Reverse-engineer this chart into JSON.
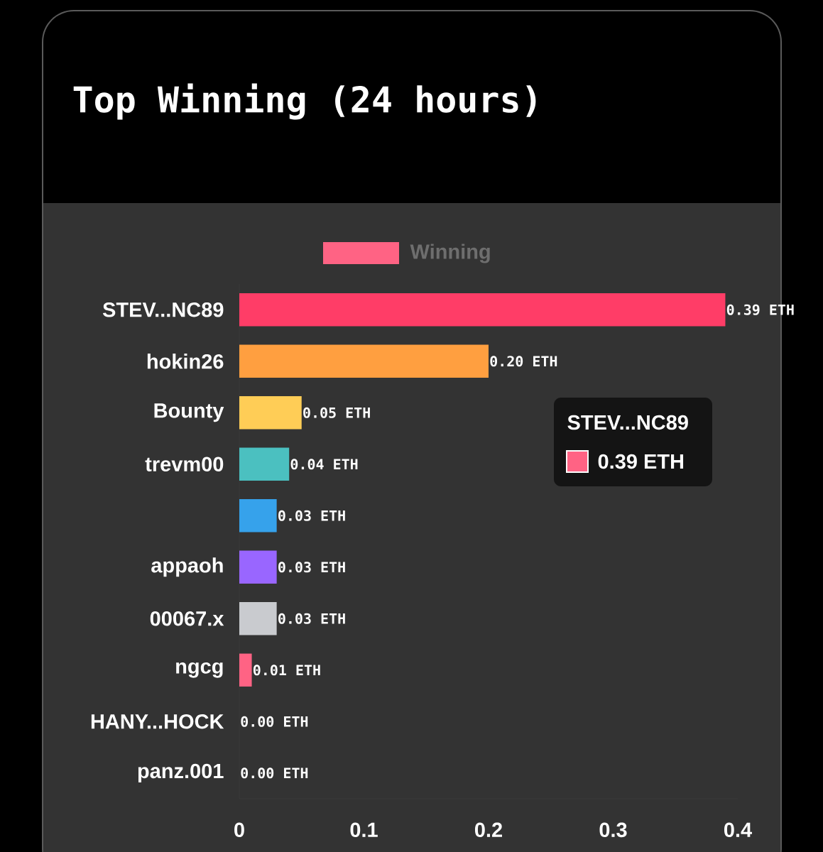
{
  "chart_data": {
    "type": "bar",
    "orientation": "horizontal",
    "title": "Top Winning (24 hours)",
    "categories": [
      "STEV...NC89",
      "hokin26",
      "Bounty",
      "trevm00",
      null,
      "appaoh",
      "00067.x",
      "ngcg",
      "HANY...HOCK",
      "panz.001"
    ],
    "series": [
      {
        "name": "Winning",
        "color": "#ff6384",
        "values": [
          0.39,
          0.2,
          0.05,
          0.04,
          0.03,
          0.03,
          0.03,
          0.01,
          0.0,
          0.0
        ],
        "colors": [
          "#ff3d67",
          "#ff9f40",
          "#ffcd56",
          "#4bc0c0",
          "#36a2eb",
          "#9966ff",
          "#c9cbcf",
          "#ff6384",
          "#ff9f40",
          "#ffcd56"
        ]
      }
    ],
    "value_labels": [
      "0.39 ETH",
      "0.20 ETH",
      "0.05 ETH",
      "0.04 ETH",
      "0.03 ETH",
      "0.03 ETH",
      "0.03 ETH",
      "0.01 ETH",
      "0.00 ETH",
      "0.00 ETH"
    ],
    "annotations": [
      "STEV...NC89",
      "0.39 ETH"
    ],
    "xlim": [
      0,
      0.4
    ],
    "xticks": [
      0,
      0.1,
      0.2,
      0.3,
      0.4
    ],
    "legend": "top",
    "grid": false
  }
}
